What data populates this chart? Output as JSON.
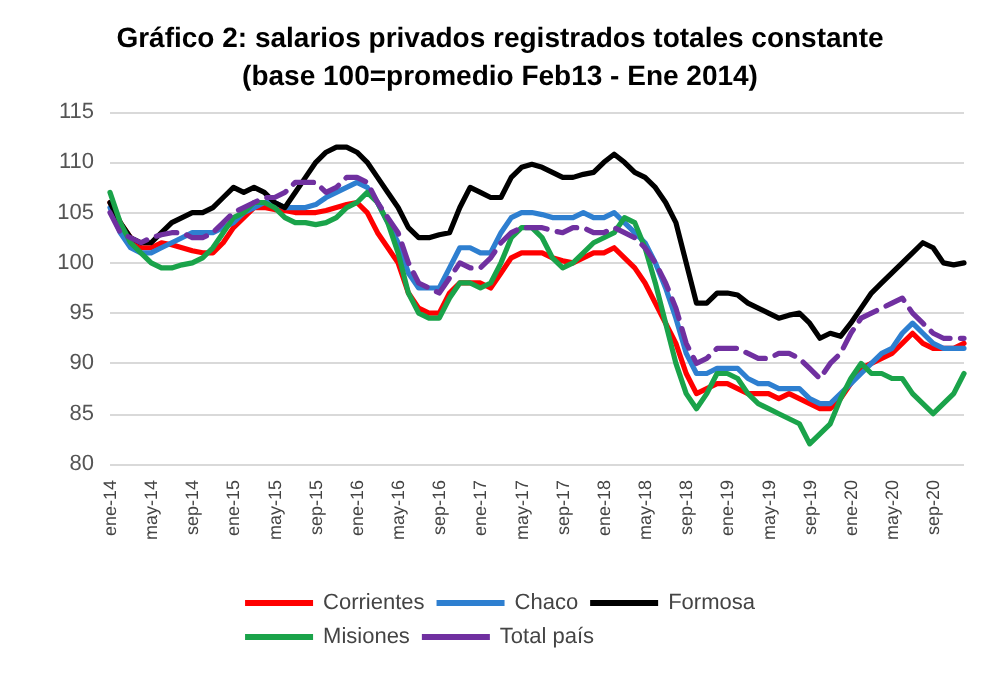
{
  "chart_data": {
    "type": "line",
    "title": "Gráfico 2: salarios privados registrados totales constante\n(base 100=promedio Feb13 - Ene 2014)",
    "categories": [
      "ene-14",
      null,
      null,
      null,
      "may-14",
      null,
      null,
      null,
      "sep-14",
      null,
      null,
      null,
      "ene-15",
      null,
      null,
      null,
      "may-15",
      null,
      null,
      null,
      "sep-15",
      null,
      null,
      null,
      "ene-16",
      null,
      null,
      null,
      "may-16",
      null,
      null,
      null,
      "sep-16",
      null,
      null,
      null,
      "ene-17",
      null,
      null,
      null,
      "may-17",
      null,
      null,
      null,
      "sep-17",
      null,
      null,
      null,
      "ene-18",
      null,
      null,
      null,
      "may-18",
      null,
      null,
      null,
      "sep-18",
      null,
      null,
      null,
      "ene-19",
      null,
      null,
      null,
      "may-19",
      null,
      null,
      null,
      "sep-19",
      null,
      null,
      null,
      "ene-20",
      null,
      null,
      null,
      "may-20",
      null,
      null,
      null,
      "sep-20",
      null,
      null,
      null
    ],
    "series": [
      {
        "name": "Corrientes",
        "color": "#ff0000",
        "values": [
          106,
          104,
          102.5,
          101.5,
          101.5,
          102,
          101.8,
          101.5,
          101.2,
          101,
          101,
          102,
          103.5,
          104.5,
          105.5,
          105.5,
          105.3,
          105.2,
          105,
          105,
          105,
          105.2,
          105.5,
          105.8,
          106,
          105,
          103,
          101.5,
          100,
          97,
          95.5,
          95,
          95,
          97,
          98,
          98,
          98,
          97.5,
          99,
          100.5,
          101,
          101,
          101,
          100.5,
          100.2,
          100,
          100.5,
          101,
          101,
          101.5,
          100.5,
          99.5,
          98,
          96,
          94,
          92,
          89,
          87,
          87.5,
          88,
          88,
          87.5,
          87,
          87,
          87,
          86.5,
          87,
          86.5,
          86,
          85.5,
          85.5,
          86.5,
          88,
          89.5,
          90,
          90.5,
          91,
          92,
          93,
          92,
          91.5,
          91.5,
          91.5,
          92
        ]
      },
      {
        "name": "Chaco",
        "color": "#2e7fd0",
        "values": [
          105.5,
          103,
          101.5,
          101,
          101,
          101.5,
          102,
          102.5,
          103,
          103,
          103,
          103.5,
          104,
          105,
          105.5,
          106,
          106,
          105.5,
          105.5,
          105.5,
          105.8,
          106.5,
          107,
          107.5,
          108,
          107.5,
          106,
          104,
          102,
          99,
          97.5,
          97.5,
          97.5,
          99.5,
          101.5,
          101.5,
          101,
          101,
          103,
          104.5,
          105,
          105,
          104.8,
          104.5,
          104.5,
          104.5,
          105,
          104.5,
          104.5,
          105,
          104,
          103,
          102,
          100,
          97.5,
          94.5,
          91,
          89,
          89,
          89.5,
          89.5,
          89.5,
          88.5,
          88,
          88,
          87.5,
          87.5,
          87.5,
          86.5,
          86,
          86,
          87,
          88,
          89,
          90,
          91,
          91.5,
          93,
          94,
          93,
          92,
          91.5,
          91.5,
          91.5
        ]
      },
      {
        "name": "Formosa",
        "color": "#000000",
        "values": [
          106,
          104,
          102.5,
          102,
          102,
          103,
          104,
          104.5,
          105,
          105,
          105.5,
          106.5,
          107.5,
          107,
          107.5,
          107,
          106,
          105.5,
          107,
          108.5,
          110,
          111,
          111.5,
          111.5,
          111,
          110,
          108.5,
          107,
          105.5,
          103.5,
          102.5,
          102.5,
          102.8,
          103,
          105.5,
          107.5,
          107,
          106.5,
          106.5,
          108.5,
          109.5,
          109.8,
          109.5,
          109,
          108.5,
          108.5,
          108.8,
          109,
          110,
          110.8,
          110,
          109,
          108.5,
          107.5,
          106,
          104,
          100,
          96,
          96,
          97,
          97,
          96.8,
          96,
          95.5,
          95,
          94.5,
          94.8,
          95,
          94,
          92.5,
          93,
          92.7,
          94,
          95.5,
          97,
          98,
          99,
          100,
          101,
          102,
          101.5,
          100,
          99.8,
          100
        ]
      },
      {
        "name": "Misiones",
        "color": "#1aa34a",
        "values": [
          107,
          104,
          102,
          101,
          100,
          99.5,
          99.5,
          99.8,
          100,
          100.5,
          101.5,
          103,
          104.5,
          105,
          106,
          106,
          105.5,
          104.5,
          104,
          104,
          103.8,
          104,
          104.5,
          105.5,
          106,
          107,
          106,
          104,
          101,
          97,
          95,
          94.5,
          94.5,
          96.5,
          98,
          98,
          97.5,
          98,
          100,
          102.5,
          103.5,
          103.5,
          102.5,
          100.5,
          99.5,
          100,
          101,
          102,
          102.5,
          103,
          104.5,
          104,
          101.5,
          98,
          94,
          90,
          87,
          85.5,
          87,
          89,
          89,
          88.5,
          87,
          86,
          85.5,
          85,
          84.5,
          84,
          82,
          83,
          84,
          86.5,
          88.5,
          90,
          89,
          89,
          88.5,
          88.5,
          87,
          86,
          85,
          86,
          87,
          89
        ]
      },
      {
        "name": "Total país",
        "color": "#7030a0",
        "line_style": "dashed",
        "values": [
          105,
          103,
          102.5,
          102,
          102.5,
          102.8,
          103,
          103,
          102.5,
          102.5,
          103,
          104,
          105,
          105.5,
          106,
          106.5,
          106.5,
          107,
          108,
          108,
          108,
          107,
          107.5,
          108.5,
          108.5,
          108,
          106,
          104.5,
          103,
          100,
          98,
          97.5,
          97,
          98.5,
          100,
          99.5,
          99.5,
          100.5,
          102,
          103,
          103.5,
          103.5,
          103.5,
          103.2,
          103,
          103.5,
          103.5,
          103,
          103,
          103.5,
          103,
          102.5,
          101.5,
          100,
          98,
          95.5,
          92,
          90,
          90.5,
          91.5,
          91.5,
          91.5,
          91,
          90.5,
          90.5,
          91,
          91,
          90.5,
          89.5,
          88.5,
          90,
          91,
          93,
          94.5,
          95,
          95.5,
          96,
          96.5,
          95,
          94,
          93,
          92.5,
          92.5,
          92.5
        ]
      }
    ],
    "ylim": [
      80,
      115
    ],
    "yticks": [
      80,
      85,
      90,
      95,
      100,
      105,
      110,
      115
    ],
    "grid": "y",
    "legend": "bottom",
    "marker": "none",
    "line_style": "solid"
  }
}
